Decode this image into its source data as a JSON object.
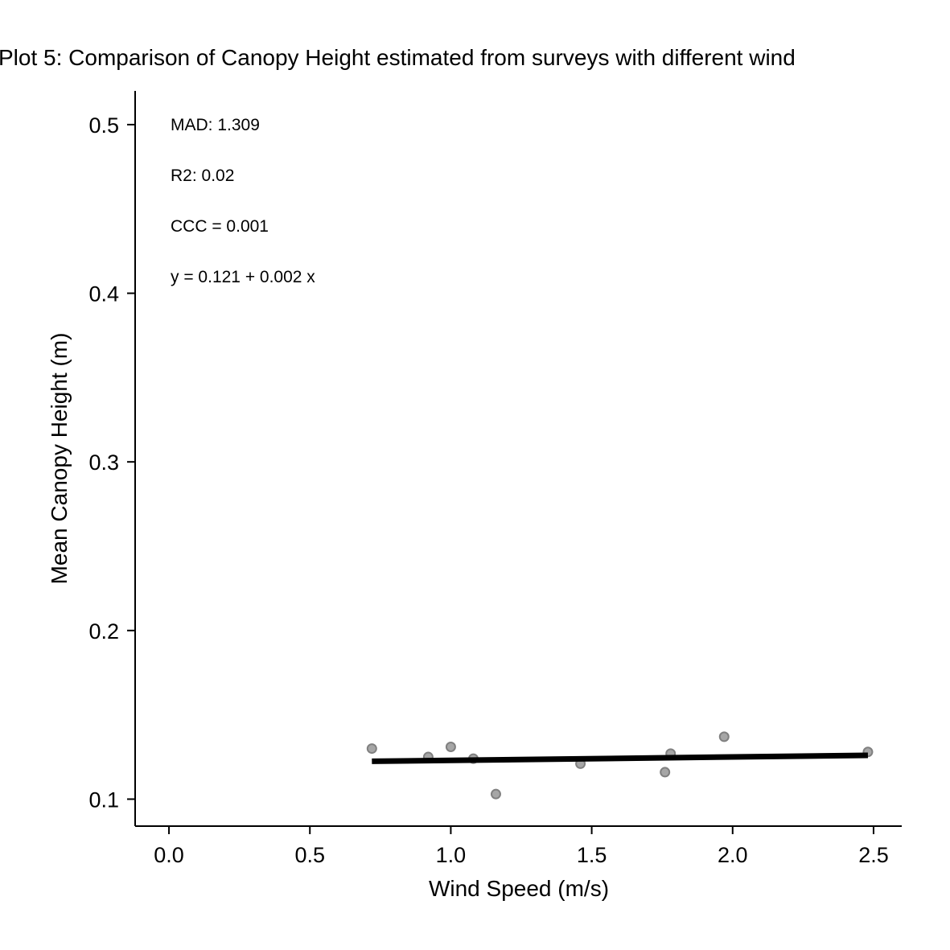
{
  "chart_data": {
    "type": "scatter",
    "title": "Plot 5: Comparison of Canopy Height estimated from surveys with different wind",
    "xlabel": "Wind Speed (m/s)",
    "ylabel": "Mean Canopy Height (m)",
    "xlim": [
      -0.12,
      2.6
    ],
    "ylim": [
      0.084,
      0.52
    ],
    "xticks": [
      0.0,
      0.5,
      1.0,
      1.5,
      2.0,
      2.5
    ],
    "xtick_labels": [
      "0.0",
      "0.5",
      "1.0",
      "1.5",
      "2.0",
      "2.5"
    ],
    "yticks": [
      0.1,
      0.2,
      0.3,
      0.4,
      0.5
    ],
    "ytick_labels": [
      "0.1",
      "0.2",
      "0.3",
      "0.4",
      "0.5"
    ],
    "grid": false,
    "legend": "none",
    "points": [
      {
        "x": 0.72,
        "y": 0.13
      },
      {
        "x": 0.92,
        "y": 0.125
      },
      {
        "x": 1.0,
        "y": 0.131
      },
      {
        "x": 1.08,
        "y": 0.124
      },
      {
        "x": 1.16,
        "y": 0.103
      },
      {
        "x": 1.46,
        "y": 0.121
      },
      {
        "x": 1.76,
        "y": 0.116
      },
      {
        "x": 1.78,
        "y": 0.127
      },
      {
        "x": 1.97,
        "y": 0.137
      },
      {
        "x": 2.48,
        "y": 0.128
      }
    ],
    "fit_line": {
      "intercept": 0.121,
      "slope": 0.002,
      "x_range": [
        0.72,
        2.48
      ]
    },
    "annotations": [
      "MAD: 1.309",
      "R2: 0.02",
      "CCC =  0.001",
      "y =  0.121 + 0.002 x"
    ],
    "colors": {
      "points_fill": "#a6a6a6",
      "points_stroke": "#808080",
      "fit_line": "#000000",
      "axis": "#000000"
    }
  }
}
